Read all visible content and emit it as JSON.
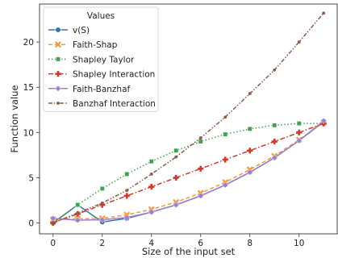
{
  "chart_data": {
    "type": "line",
    "title": "",
    "xlabel": "Size of the input set",
    "ylabel": "Function value",
    "xlim": [
      -0.55,
      11.55
    ],
    "ylim": [
      -1.2,
      24.2
    ],
    "x_ticks": [
      0,
      2,
      4,
      6,
      8,
      10
    ],
    "y_ticks": [
      0,
      5,
      10,
      15,
      20
    ],
    "grid": false,
    "legend": {
      "title": "Values",
      "placement": "top-left"
    },
    "x": [
      0,
      1,
      2,
      3,
      4,
      5,
      6,
      7,
      8,
      9,
      10,
      11
    ],
    "series": [
      {
        "name": "v(S)",
        "color": "#3a73a8",
        "style": "solid",
        "marker": "circle",
        "values": [
          0,
          2,
          0.1,
          0.5,
          1.2,
          2.0,
          3.0,
          4.2,
          5.6,
          7.2,
          9.1,
          11.2
        ]
      },
      {
        "name": "Faith-Shap",
        "color": "#ee9940",
        "style": "dashed",
        "marker": "x",
        "values": [
          0.4,
          0.45,
          0.5,
          0.9,
          1.5,
          2.3,
          3.3,
          4.5,
          5.9,
          7.4,
          9.2,
          11.1
        ]
      },
      {
        "name": "Shapley Taylor",
        "color": "#3fa34d",
        "style": "dotted",
        "marker": "square",
        "values": [
          0,
          2,
          3.8,
          5.4,
          6.8,
          8.0,
          9.0,
          9.8,
          10.4,
          10.8,
          11.0,
          11.0
        ]
      },
      {
        "name": "Shapley Interaction",
        "color": "#d03a2c",
        "style": "dashdot",
        "marker": "plus",
        "values": [
          0,
          1.0,
          2.0,
          3.0,
          4.0,
          5.0,
          6.0,
          7.0,
          8.0,
          9.0,
          10.0,
          11.0
        ]
      },
      {
        "name": "Faith-Banzhaf",
        "color": "#9c80cc",
        "style": "solid",
        "marker": "diamond",
        "values": [
          0.5,
          0.3,
          0.35,
          0.6,
          1.2,
          2.0,
          3.0,
          4.2,
          5.6,
          7.2,
          9.1,
          11.3
        ]
      },
      {
        "name": "Banzhaf Interaction",
        "color": "#8c5a4a",
        "style": "dashdotdot",
        "marker": "point",
        "values": [
          0,
          1.1,
          2.2,
          3.6,
          5.4,
          7.3,
          9.4,
          11.7,
          14.3,
          16.9,
          20.0,
          23.2
        ]
      }
    ]
  }
}
